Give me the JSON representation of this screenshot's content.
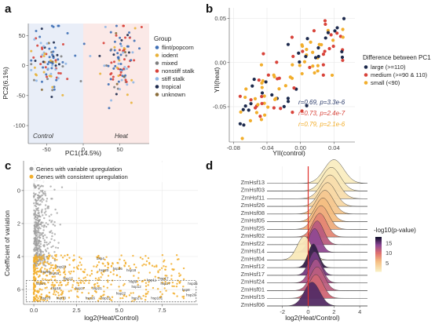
{
  "colors": {
    "flint": "#3e6fb5",
    "iodent": "#e8b23a",
    "mixed": "#7f7f7f",
    "nonstiff": "#d8433a",
    "stiff": "#8fb7e6",
    "tropical": "#1d2a4d",
    "unknown": "#8a6d3b",
    "large": "#1d2a4d",
    "medium": "#d8433a",
    "small": "#f2ae2c",
    "variable": "#9e9e9e",
    "consistent": "#f2ae2c",
    "control_bg": "#e9eef8",
    "heat_bg": "#fbe9e7"
  },
  "panels": {
    "a": "a",
    "b": "b",
    "c": "c",
    "d": "d"
  },
  "chart_data": [
    {
      "id": "a",
      "type": "scatter",
      "xlabel": "PC1(14.5%)",
      "ylabel": "PC2(6.1%)",
      "xlim": [
        -75,
        90
      ],
      "ylim": [
        -130,
        70
      ],
      "xticks": [
        -50,
        0,
        50
      ],
      "yticks": [
        50,
        0,
        -50,
        -100
      ],
      "region_labels": {
        "control": "Control",
        "heat": "Heat"
      },
      "legend_title": "Group",
      "legend": [
        "flint/popcorn",
        "iodent",
        "mixed",
        "nonstiff stalk",
        "stiff stalk",
        "tropical",
        "unknown"
      ],
      "clusters": {
        "control_center": [
          -45,
          5
        ],
        "control_sd": [
          14,
          28
        ],
        "heat_center": [
          52,
          5
        ],
        "heat_sd": [
          12,
          28
        ],
        "points_per_cluster": 100
      }
    },
    {
      "id": "b",
      "type": "scatter",
      "xlabel": "YII(control)",
      "ylabel": "YII(heat)",
      "xlim": [
        -0.085,
        0.065
      ],
      "ylim": [
        -0.09,
        0.062
      ],
      "xticks": [
        -0.08,
        -0.04,
        0.0,
        0.04
      ],
      "xtick_labels": [
        "-0.08",
        "-0.04",
        "0.00",
        "0.04"
      ],
      "yticks": [
        0.05,
        0.0,
        -0.05
      ],
      "ytick_labels": [
        "0.05",
        "0.00",
        "-0.05"
      ],
      "legend_title": "Difference between PC1",
      "legend": [
        "large (>=110)",
        "medium (>=90 & 110)",
        "small (<90)"
      ],
      "stats": [
        {
          "text": "r=0.69, p=3.3e-6",
          "series": "large"
        },
        {
          "text": "r=0.73, p=2.4e-7",
          "series": "medium"
        },
        {
          "text": "r=0.79, p=2.1e-6",
          "series": "small"
        }
      ]
    },
    {
      "id": "c",
      "type": "scatter",
      "xlabel": "log2(Heat/Control)",
      "ylabel": "Coefficient of variation",
      "xlim": [
        -0.6,
        9.6
      ],
      "ylim": [
        6.9,
        -1.8
      ],
      "xticks": [
        0.0,
        2.5,
        5.0,
        7.5
      ],
      "xtick_labels": [
        "0.0",
        "2.5",
        "5.0",
        "7.5"
      ],
      "yticks": [
        0,
        2,
        4,
        6
      ],
      "legend": [
        "Genes with variable upregulation",
        "Genes with consistent upregulation"
      ],
      "gene_labels": [
        {
          "t": "hsp20",
          "x": 4.1,
          "y": 4.9
        },
        {
          "t": "dsp4",
          "x": 3.9,
          "y": 4.2
        },
        {
          "t": "hsp20",
          "x": 1.6,
          "y": 4.7
        },
        {
          "t": "hsp26",
          "x": 4.9,
          "y": 4.8
        },
        {
          "t": "hsp18",
          "x": 5.7,
          "y": 4.9
        },
        {
          "t": "hsp17",
          "x": 7.6,
          "y": 5.4
        },
        {
          "t": "hsp17",
          "x": 7.7,
          "y": 5.7
        },
        {
          "t": "hsp26",
          "x": 9.3,
          "y": 5.7
        },
        {
          "t": "hsp9",
          "x": 5.8,
          "y": 5.6
        },
        {
          "t": "hsp11",
          "x": 6.9,
          "y": 5.5
        },
        {
          "t": "hsp12",
          "x": 6.0,
          "y": 5.9
        },
        {
          "t": "hsp8",
          "x": 8.9,
          "y": 6.1
        },
        {
          "t": "hsp20",
          "x": 9.2,
          "y": 6.4
        },
        {
          "t": "hsp22",
          "x": 5.1,
          "y": 6.3
        },
        {
          "t": "hsp101",
          "x": 7.2,
          "y": 6.6
        },
        {
          "t": "hsp27",
          "x": 6.0,
          "y": 6.6
        },
        {
          "t": "hsp23",
          "x": 4.2,
          "y": 6.6
        },
        {
          "t": "hsp21",
          "x": 3.7,
          "y": 6.0
        },
        {
          "t": "hsp70",
          "x": 1.6,
          "y": 6.6
        },
        {
          "t": "hsp70",
          "x": 0.7,
          "y": 6.6
        },
        {
          "t": "hsp16",
          "x": 3.3,
          "y": 6.6
        },
        {
          "t": "hsp17",
          "x": 2.7,
          "y": 6.0
        },
        {
          "t": "hsp18",
          "x": 1.3,
          "y": 6.0
        },
        {
          "t": "hsp17",
          "x": 2.0,
          "y": 5.4
        },
        {
          "t": "hsp18",
          "x": 1.2,
          "y": 5.1
        },
        {
          "t": "hsp90",
          "x": 0.7,
          "y": 5.0
        },
        {
          "t": "hsp17",
          "x": 0.4,
          "y": 5.7
        }
      ]
    },
    {
      "id": "d",
      "type": "area",
      "xlabel": "log2(Heat/Control)",
      "xlim": [
        -3.2,
        4.6
      ],
      "xticks": [
        -2,
        0,
        2,
        4
      ],
      "vline": 0,
      "colorbar_title": "-log10(p-value)",
      "colorbar_ticks": [
        15,
        10,
        5
      ],
      "colorbar_range": [
        1,
        18
      ],
      "genes": [
        {
          "name": "ZmHsf13",
          "mean": 2.0,
          "sd": 0.75,
          "p": 1.5
        },
        {
          "name": "ZmHsf03",
          "mean": 1.8,
          "sd": 0.7,
          "p": 2
        },
        {
          "name": "ZmHsf11",
          "mean": 1.7,
          "sd": 0.7,
          "p": 3
        },
        {
          "name": "ZmHsf26",
          "mean": 1.5,
          "sd": 0.65,
          "p": 3.5
        },
        {
          "name": "ZmHsf08",
          "mean": 1.3,
          "sd": 0.65,
          "p": 5
        },
        {
          "name": "ZmHsf05",
          "mean": 1.15,
          "sd": 0.6,
          "p": 6
        },
        {
          "name": "ZmHsf25",
          "mean": 1.0,
          "sd": 0.6,
          "p": 7
        },
        {
          "name": "ZmHsf02",
          "mean": 0.9,
          "sd": 0.55,
          "p": 9
        },
        {
          "name": "ZmHsf22",
          "mean": 0.7,
          "sd": 0.5,
          "p": 12
        },
        {
          "name": "ZmHsf14",
          "mean": 0.5,
          "sd": 0.45,
          "p": 14
        },
        {
          "name": "ZmHsf04",
          "mean": -0.3,
          "sd": 0.55,
          "p": 2
        },
        {
          "name": "ZmHsf12",
          "mean": 0.4,
          "sd": 0.4,
          "p": 17
        },
        {
          "name": "ZmHsf17",
          "mean": 0.5,
          "sd": 0.45,
          "p": 15
        },
        {
          "name": "ZmHsf24",
          "mean": 0.6,
          "sd": 0.5,
          "p": 13
        },
        {
          "name": "ZmHsf01",
          "mean": 0.7,
          "sd": 0.55,
          "p": 12
        },
        {
          "name": "ZmHsf15",
          "mean": 0.6,
          "sd": 0.55,
          "p": 11
        },
        {
          "name": "ZmHsf06",
          "mean": 0.3,
          "sd": 0.6,
          "p": 16
        }
      ]
    }
  ]
}
